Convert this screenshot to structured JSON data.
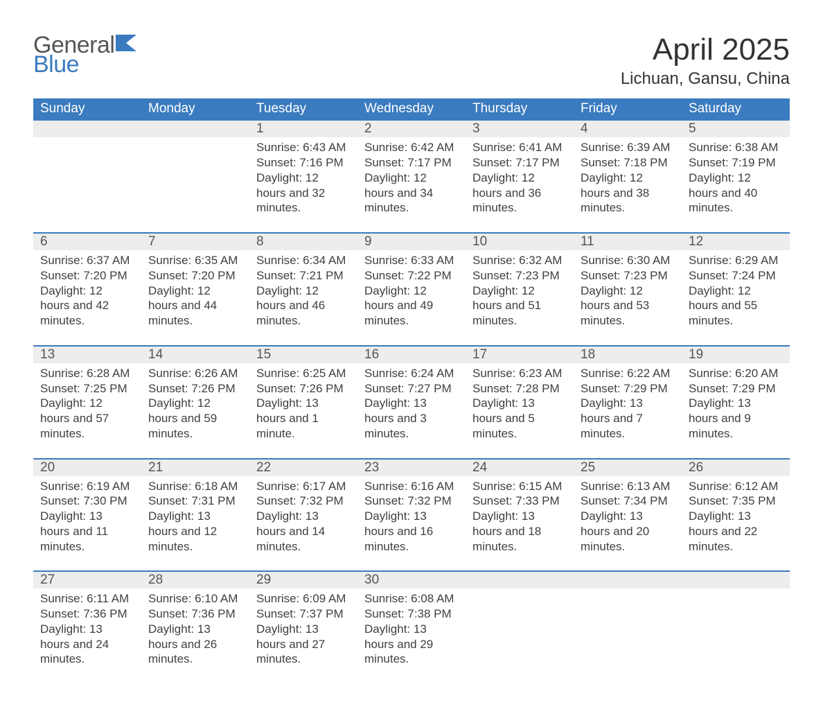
{
  "colors": {
    "header_bg": "#3b7bbf",
    "header_text": "#ffffff",
    "strip_bg": "#ededed",
    "week_border": "#3b7bbf",
    "body_text": "#3f3f3f",
    "logo_general": "#555555",
    "logo_blue": "#3b7bbf",
    "page_bg": "#ffffff"
  },
  "logo": {
    "line1": "General",
    "line2": "Blue"
  },
  "title": "April 2025",
  "location": "Lichuan, Gansu, China",
  "days_of_week": [
    "Sunday",
    "Monday",
    "Tuesday",
    "Wednesday",
    "Thursday",
    "Friday",
    "Saturday"
  ],
  "labels": {
    "sunrise": "Sunrise:",
    "sunset": "Sunset:",
    "daylight": "Daylight:"
  },
  "weeks": [
    [
      null,
      null,
      {
        "n": "1",
        "sr": "6:43 AM",
        "ss": "7:16 PM",
        "dl": "12 hours and 32 minutes."
      },
      {
        "n": "2",
        "sr": "6:42 AM",
        "ss": "7:17 PM",
        "dl": "12 hours and 34 minutes."
      },
      {
        "n": "3",
        "sr": "6:41 AM",
        "ss": "7:17 PM",
        "dl": "12 hours and 36 minutes."
      },
      {
        "n": "4",
        "sr": "6:39 AM",
        "ss": "7:18 PM",
        "dl": "12 hours and 38 minutes."
      },
      {
        "n": "5",
        "sr": "6:38 AM",
        "ss": "7:19 PM",
        "dl": "12 hours and 40 minutes."
      }
    ],
    [
      {
        "n": "6",
        "sr": "6:37 AM",
        "ss": "7:20 PM",
        "dl": "12 hours and 42 minutes."
      },
      {
        "n": "7",
        "sr": "6:35 AM",
        "ss": "7:20 PM",
        "dl": "12 hours and 44 minutes."
      },
      {
        "n": "8",
        "sr": "6:34 AM",
        "ss": "7:21 PM",
        "dl": "12 hours and 46 minutes."
      },
      {
        "n": "9",
        "sr": "6:33 AM",
        "ss": "7:22 PM",
        "dl": "12 hours and 49 minutes."
      },
      {
        "n": "10",
        "sr": "6:32 AM",
        "ss": "7:23 PM",
        "dl": "12 hours and 51 minutes."
      },
      {
        "n": "11",
        "sr": "6:30 AM",
        "ss": "7:23 PM",
        "dl": "12 hours and 53 minutes."
      },
      {
        "n": "12",
        "sr": "6:29 AM",
        "ss": "7:24 PM",
        "dl": "12 hours and 55 minutes."
      }
    ],
    [
      {
        "n": "13",
        "sr": "6:28 AM",
        "ss": "7:25 PM",
        "dl": "12 hours and 57 minutes."
      },
      {
        "n": "14",
        "sr": "6:26 AM",
        "ss": "7:26 PM",
        "dl": "12 hours and 59 minutes."
      },
      {
        "n": "15",
        "sr": "6:25 AM",
        "ss": "7:26 PM",
        "dl": "13 hours and 1 minute."
      },
      {
        "n": "16",
        "sr": "6:24 AM",
        "ss": "7:27 PM",
        "dl": "13 hours and 3 minutes."
      },
      {
        "n": "17",
        "sr": "6:23 AM",
        "ss": "7:28 PM",
        "dl": "13 hours and 5 minutes."
      },
      {
        "n": "18",
        "sr": "6:22 AM",
        "ss": "7:29 PM",
        "dl": "13 hours and 7 minutes."
      },
      {
        "n": "19",
        "sr": "6:20 AM",
        "ss": "7:29 PM",
        "dl": "13 hours and 9 minutes."
      }
    ],
    [
      {
        "n": "20",
        "sr": "6:19 AM",
        "ss": "7:30 PM",
        "dl": "13 hours and 11 minutes."
      },
      {
        "n": "21",
        "sr": "6:18 AM",
        "ss": "7:31 PM",
        "dl": "13 hours and 12 minutes."
      },
      {
        "n": "22",
        "sr": "6:17 AM",
        "ss": "7:32 PM",
        "dl": "13 hours and 14 minutes."
      },
      {
        "n": "23",
        "sr": "6:16 AM",
        "ss": "7:32 PM",
        "dl": "13 hours and 16 minutes."
      },
      {
        "n": "24",
        "sr": "6:15 AM",
        "ss": "7:33 PM",
        "dl": "13 hours and 18 minutes."
      },
      {
        "n": "25",
        "sr": "6:13 AM",
        "ss": "7:34 PM",
        "dl": "13 hours and 20 minutes."
      },
      {
        "n": "26",
        "sr": "6:12 AM",
        "ss": "7:35 PM",
        "dl": "13 hours and 22 minutes."
      }
    ],
    [
      {
        "n": "27",
        "sr": "6:11 AM",
        "ss": "7:36 PM",
        "dl": "13 hours and 24 minutes."
      },
      {
        "n": "28",
        "sr": "6:10 AM",
        "ss": "7:36 PM",
        "dl": "13 hours and 26 minutes."
      },
      {
        "n": "29",
        "sr": "6:09 AM",
        "ss": "7:37 PM",
        "dl": "13 hours and 27 minutes."
      },
      {
        "n": "30",
        "sr": "6:08 AM",
        "ss": "7:38 PM",
        "dl": "13 hours and 29 minutes."
      },
      null,
      null,
      null
    ]
  ]
}
